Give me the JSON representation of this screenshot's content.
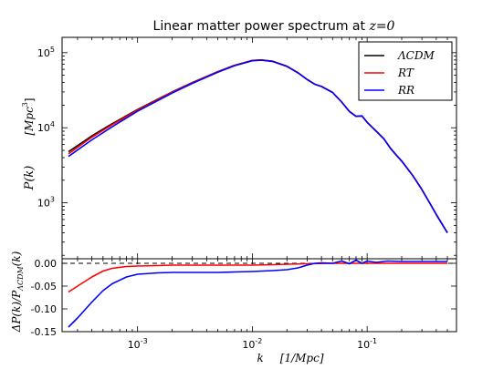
{
  "chart_data": [
    {
      "type": "line",
      "title_text": "Linear matter power spectrum at ",
      "title_math": "z=0",
      "ylabel_main": "P(k)",
      "ylabel_units": "[Mpc",
      "ylabel_units_exp": "3",
      "ylabel_units_close": "]",
      "xscale": "log",
      "yscale": "log",
      "xlim": [
        0.00022,
        0.6
      ],
      "ylim": [
        180,
        160000
      ],
      "yticks": [
        1000,
        10000,
        100000
      ],
      "ytick_labels": [
        {
          "base": "10",
          "exp": "3"
        },
        {
          "base": "10",
          "exp": "4"
        },
        {
          "base": "10",
          "exp": "5"
        }
      ],
      "legend_placement": "top-right",
      "series": [
        {
          "name": "ΛCDM",
          "color": "#000000",
          "x": [
            0.00025,
            0.0004,
            0.0006,
            0.001,
            0.0015,
            0.002,
            0.003,
            0.005,
            0.007,
            0.01,
            0.012,
            0.015,
            0.02,
            0.025,
            0.03,
            0.035,
            0.04,
            0.05,
            0.06,
            0.07,
            0.08,
            0.09,
            0.1,
            0.12,
            0.14,
            0.16,
            0.18,
            0.2,
            0.25,
            0.3,
            0.35,
            0.4,
            0.5
          ],
          "y": [
            4800,
            7800,
            11300,
            17500,
            24000,
            30000,
            40000,
            56000,
            68000,
            79000,
            80000,
            77000,
            66000,
            54000,
            44000,
            38000,
            35500,
            29500,
            22000,
            16500,
            14200,
            14400,
            11800,
            9000,
            7100,
            5300,
            4300,
            3600,
            2300,
            1500,
            1000,
            700,
            400
          ]
        },
        {
          "name": "RT",
          "color": "#ff0000",
          "x": [
            0.00025,
            0.0004,
            0.0006,
            0.001,
            0.0015,
            0.002,
            0.003,
            0.005,
            0.007,
            0.01,
            0.012,
            0.015,
            0.02,
            0.025,
            0.03,
            0.035,
            0.04,
            0.05,
            0.06,
            0.07,
            0.08,
            0.09,
            0.1,
            0.12,
            0.14,
            0.16,
            0.18,
            0.2,
            0.25,
            0.3,
            0.35,
            0.4,
            0.5
          ],
          "y": [
            4500,
            7500,
            11000,
            17200,
            23700,
            29700,
            39700,
            55700,
            67700,
            78700,
            79800,
            76800,
            65900,
            53950,
            43960,
            37980,
            35500,
            29500,
            22000,
            16500,
            14200,
            14400,
            11800,
            9000,
            7100,
            5300,
            4300,
            3600,
            2300,
            1500,
            1000,
            700,
            400
          ]
        },
        {
          "name": "RR",
          "color": "#0000ff",
          "x": [
            0.00025,
            0.0004,
            0.0006,
            0.001,
            0.0015,
            0.002,
            0.003,
            0.005,
            0.007,
            0.01,
            0.012,
            0.015,
            0.02,
            0.025,
            0.03,
            0.035,
            0.04,
            0.05,
            0.06,
            0.07,
            0.08,
            0.09,
            0.1,
            0.12,
            0.14,
            0.16,
            0.18,
            0.2,
            0.25,
            0.3,
            0.35,
            0.4,
            0.5
          ],
          "y": [
            4150,
            6900,
            10300,
            16600,
            23000,
            29000,
            39000,
            55000,
            67000,
            78000,
            79300,
            76400,
            65600,
            53800,
            43900,
            37950,
            35500,
            29500,
            22000,
            16500,
            14200,
            14400,
            11800,
            9000,
            7100,
            5300,
            4300,
            3600,
            2300,
            1500,
            1000,
            700,
            400
          ]
        }
      ]
    },
    {
      "type": "line",
      "xlabel_var": "k",
      "xlabel_units": "[1/Mpc]",
      "ylabel": "ΔP(k)/P",
      "ylabel_sub": "ΛCDM",
      "ylabel_tail": "(k)",
      "xscale": "log",
      "xlim": [
        0.00022,
        0.6
      ],
      "ylim": [
        -0.15,
        0.01
      ],
      "yticks": [
        0.0,
        -0.05,
        -0.1,
        -0.15
      ],
      "ytick_labels": [
        "0.00",
        "-0.05",
        "-0.10",
        "-0.15"
      ],
      "xticks": [
        0.001,
        0.01,
        0.1
      ],
      "xtick_labels": [
        {
          "base": "10",
          "exp": "-3"
        },
        {
          "base": "10",
          "exp": "-2"
        },
        {
          "base": "10",
          "exp": "-1"
        }
      ],
      "reference_line": {
        "y": 0.0,
        "style": "dashed"
      },
      "series": [
        {
          "name": "RT",
          "color": "#ff0000",
          "x": [
            0.00025,
            0.0003,
            0.0004,
            0.0005,
            0.0006,
            0.0008,
            0.001,
            0.0015,
            0.002,
            0.003,
            0.005,
            0.007,
            0.01,
            0.015,
            0.02,
            0.03,
            0.05,
            0.1,
            0.2,
            0.5
          ],
          "y": [
            -0.063,
            -0.05,
            -0.03,
            -0.017,
            -0.011,
            -0.007,
            -0.006,
            -0.005,
            -0.004,
            -0.004,
            -0.004,
            -0.004,
            -0.004,
            -0.003,
            -0.002,
            -0.001,
            0.0,
            0.0,
            0.0,
            0.0
          ]
        },
        {
          "name": "RR",
          "color": "#0000ff",
          "x": [
            0.00025,
            0.0003,
            0.0004,
            0.0005,
            0.0006,
            0.0008,
            0.001,
            0.0015,
            0.002,
            0.003,
            0.005,
            0.007,
            0.01,
            0.015,
            0.02,
            0.025,
            0.03,
            0.035,
            0.04,
            0.05,
            0.06,
            0.07,
            0.08,
            0.09,
            0.1,
            0.12,
            0.15,
            0.2,
            0.3,
            0.5
          ],
          "y": [
            -0.14,
            -0.12,
            -0.085,
            -0.06,
            -0.045,
            -0.03,
            -0.024,
            -0.021,
            -0.02,
            -0.02,
            -0.02,
            -0.019,
            -0.018,
            -0.016,
            -0.014,
            -0.01,
            -0.004,
            0.0,
            0.001,
            0.0,
            0.005,
            -0.001,
            0.007,
            0.0,
            0.005,
            0.002,
            0.005,
            0.004,
            0.004,
            0.004
          ]
        }
      ]
    }
  ]
}
